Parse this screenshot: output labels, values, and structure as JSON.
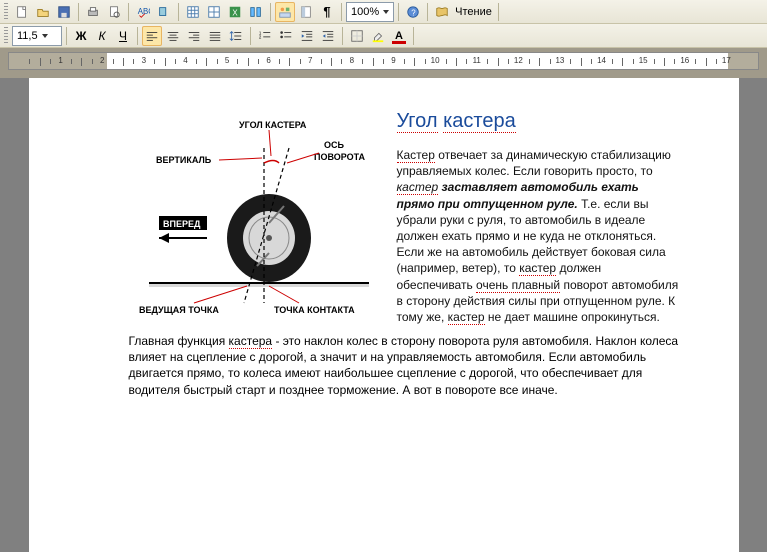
{
  "toolbar1": {
    "zoom": "100%",
    "reading_label": "Чтение"
  },
  "toolbar2": {
    "font_size": "11,5",
    "bold": "Ж",
    "italic": "К",
    "underline": "Ч",
    "font_color_letter": "A"
  },
  "document": {
    "title_part1": "Угол",
    "title_part2": "кастера",
    "para1_seg1": "Кастер",
    "para1_seg2": " отвечает за динамическую стабилизацию управляемых колес. Если говорить просто, то ",
    "para1_seg3": "кастер",
    "para1_bold": " заставляет автомобиль ехать прямо при отпущенном руле.",
    "para1_seg4": " Т.е. если вы убрали руки с руля, то автомобиль в идеале должен ехать прямо и не куда не отклоняться. Если же на автомобиль действует боковая сила (например, ветер), то ",
    "para1_seg5": "кастер",
    "para1_seg6": " должен обеспечивать ",
    "para1_seg7": "очень плавный",
    "para1_seg8": " поворот автомобиля в сторону действия силы при отпущенном руле. К тому же, ",
    "para1_seg9": "кастер",
    "para1_seg10": " не дает машине опрокинуться.",
    "para2_seg1": "Главная функция ",
    "para2_seg2": "кастера",
    "para2_seg3": " - это наклон колес в сторону поворота руля автомобиля. Наклон колеса влияет на сцепление с дорогой, а значит и на управляемость автомобиля. Если автомобиль двигается прямо, то колеса имеют наибольшее сцепление с дорогой, что обеспечивает для водителя быстрый старт и позднее торможение. А вот в повороте все иначе."
  },
  "diagram": {
    "label_angle": "УГОЛ КАСТЕРА",
    "label_vertical": "ВЕРТИКАЛЬ",
    "label_axis1": "ОСЬ",
    "label_axis2": "ПОВОРОТА",
    "label_forward": "ВПЕРЕД",
    "label_lead": "ВЕДУЩАЯ ТОЧКА",
    "label_contact": "ТОЧКА КОНТАКТА",
    "colors": {
      "accent": "#c00000",
      "line": "#000000",
      "tire": "#1a1a1a"
    }
  },
  "ruler": {
    "start": 1,
    "end": 17
  }
}
